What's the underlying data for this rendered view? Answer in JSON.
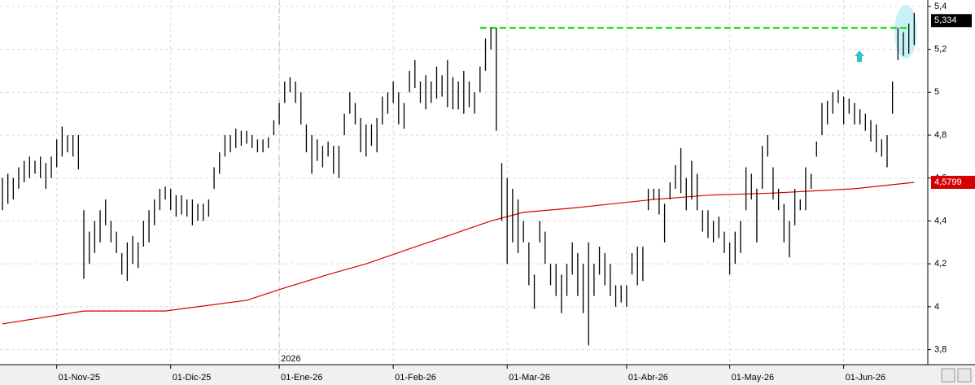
{
  "chart_data": {
    "type": "ohlc",
    "xlim": [
      -0.45,
      170.5
    ],
    "ylim": [
      3.73,
      5.43
    ],
    "xticks": [
      {
        "value": 10,
        "label": "01-Nov-25"
      },
      {
        "value": 31,
        "label": "01-Dic-25"
      },
      {
        "value": 51,
        "label": "01-Ene-26"
      },
      {
        "value": 72,
        "label": "01-Feb-26"
      },
      {
        "value": 93,
        "label": "01-Mar-26"
      },
      {
        "value": 115,
        "label": "01-Abr-26"
      },
      {
        "value": 134,
        "label": "01-May-26"
      },
      {
        "value": 155,
        "label": "01-Jun-26"
      }
    ],
    "yticks": [
      {
        "value": 3.8,
        "label": "3,8"
      },
      4,
      {
        "value": 4.2,
        "label": "4,2"
      },
      {
        "value": 4.4,
        "label": "4,4"
      },
      {
        "value": 4.6,
        "label": "4,6"
      },
      {
        "value": 4.8,
        "label": "4,8"
      },
      5,
      {
        "value": 5.2,
        "label": "5,2"
      },
      {
        "value": 5.4,
        "label": "5,4"
      }
    ],
    "grid": true,
    "year_marker": {
      "label": "2026",
      "x": 51
    },
    "color": "#000000",
    "low": [
      4.45,
      4.48,
      4.5,
      4.55,
      4.58,
      4.6,
      4.62,
      4.6,
      4.55,
      4.6,
      4.65,
      4.7,
      4.72,
      4.7,
      4.64,
      4.13,
      4.2,
      4.25,
      4.3,
      4.38,
      4.3,
      4.25,
      4.15,
      4.12,
      4.2,
      4.18,
      4.28,
      4.3,
      4.38,
      4.45,
      4.5,
      4.45,
      4.42,
      4.43,
      4.42,
      4.38,
      4.4,
      4.4,
      4.42,
      4.55,
      4.62,
      4.7,
      4.72,
      4.74,
      4.75,
      4.76,
      4.74,
      4.72,
      4.72,
      4.74,
      4.8,
      4.85,
      4.95,
      5.0,
      4.95,
      4.85,
      4.72,
      4.62,
      4.68,
      4.65,
      4.7,
      4.62,
      4.6,
      4.8,
      4.9,
      4.85,
      4.72,
      4.7,
      4.75,
      4.72,
      4.85,
      4.9,
      4.95,
      4.85,
      4.83,
      5.0,
      5.02,
      4.95,
      4.92,
      4.95,
      4.97,
      4.98,
      4.93,
      4.92,
      4.92,
      4.9,
      4.93,
      4.9,
      5.0,
      5.1,
      5.2,
      4.82,
      4.4,
      4.2,
      4.3,
      4.25,
      4.3,
      4.1,
      3.99,
      4.3,
      4.2,
      4.1,
      4.05,
      3.97,
      4.05,
      4.15,
      4.05,
      3.97,
      3.82,
      4.05,
      4.15,
      4.1,
      4.05,
      4.0,
      4.02,
      4.0,
      4.15,
      4.1,
      4.12,
      4.45,
      4.5,
      4.43,
      4.3,
      4.5,
      4.55,
      4.53,
      4.45,
      4.5,
      4.45,
      4.35,
      4.32,
      4.3,
      4.32,
      4.25,
      4.15,
      4.2,
      4.25,
      4.45,
      4.5,
      4.3,
      4.55,
      4.7,
      4.5,
      4.45,
      4.3,
      4.23,
      4.38,
      4.45,
      4.45,
      4.55,
      4.7,
      4.8,
      4.85,
      4.9,
      4.95,
      4.85,
      4.9,
      4.85,
      4.85,
      4.82,
      4.77,
      4.72,
      4.7,
      4.65,
      4.9,
      5.15,
      5.17,
      5.18,
      5.22
    ],
    "high": [
      4.6,
      4.62,
      4.6,
      4.65,
      4.68,
      4.7,
      4.68,
      4.7,
      4.67,
      4.7,
      4.78,
      4.84,
      4.8,
      4.8,
      4.8,
      4.45,
      4.35,
      4.4,
      4.45,
      4.5,
      4.4,
      4.35,
      4.25,
      4.3,
      4.33,
      4.3,
      4.4,
      4.45,
      4.5,
      4.55,
      4.56,
      4.55,
      4.52,
      4.52,
      4.5,
      4.5,
      4.48,
      4.48,
      4.5,
      4.65,
      4.72,
      4.8,
      4.8,
      4.83,
      4.82,
      4.82,
      4.8,
      4.78,
      4.78,
      4.79,
      4.87,
      4.95,
      5.05,
      5.07,
      5.05,
      5.0,
      4.85,
      4.8,
      4.78,
      4.75,
      4.77,
      4.75,
      4.75,
      4.9,
      5.0,
      4.95,
      4.88,
      4.85,
      4.85,
      4.88,
      4.98,
      5.0,
      5.05,
      5.0,
      4.95,
      5.1,
      5.15,
      5.05,
      5.08,
      5.05,
      5.12,
      5.08,
      5.15,
      5.07,
      5.05,
      5.1,
      5.05,
      5.0,
      5.12,
      5.25,
      5.3,
      5.3,
      4.67,
      4.6,
      4.55,
      4.5,
      4.4,
      4.3,
      4.15,
      4.4,
      4.35,
      4.2,
      4.2,
      4.15,
      4.2,
      4.3,
      4.25,
      4.2,
      4.3,
      4.2,
      4.28,
      4.25,
      4.2,
      4.1,
      4.1,
      4.1,
      4.25,
      4.28,
      4.28,
      4.55,
      4.55,
      4.55,
      4.48,
      4.58,
      4.66,
      4.74,
      4.6,
      4.68,
      4.62,
      4.45,
      4.45,
      4.4,
      4.42,
      4.35,
      4.3,
      4.35,
      4.4,
      4.65,
      4.62,
      4.55,
      4.75,
      4.8,
      4.65,
      4.55,
      4.48,
      4.4,
      4.55,
      4.5,
      4.65,
      4.62,
      4.77,
      4.95,
      4.96,
      5.0,
      5.01,
      4.98,
      4.97,
      4.95,
      4.92,
      4.9,
      4.87,
      4.85,
      4.78,
      4.8,
      5.05,
      5.3,
      5.28,
      5.32,
      5.37
    ],
    "moving_average": {
      "color": "#d40000",
      "x": [
        0,
        15,
        30,
        45,
        51,
        60,
        67,
        75,
        82,
        90,
        96,
        105,
        120,
        130,
        142,
        157,
        168
      ],
      "values": [
        3.92,
        3.98,
        3.98,
        4.03,
        4.08,
        4.15,
        4.2,
        4.27,
        4.33,
        4.4,
        4.44,
        4.46,
        4.5,
        4.52,
        4.53,
        4.55,
        4.58
      ],
      "last": {
        "value": 4.5799,
        "label": "4,5799"
      }
    },
    "last_price": {
      "value": 5.334,
      "label": "5,334"
    },
    "hline": {
      "value": 5.3,
      "x": [
        88,
        167
      ],
      "color": "#22dd22"
    }
  }
}
